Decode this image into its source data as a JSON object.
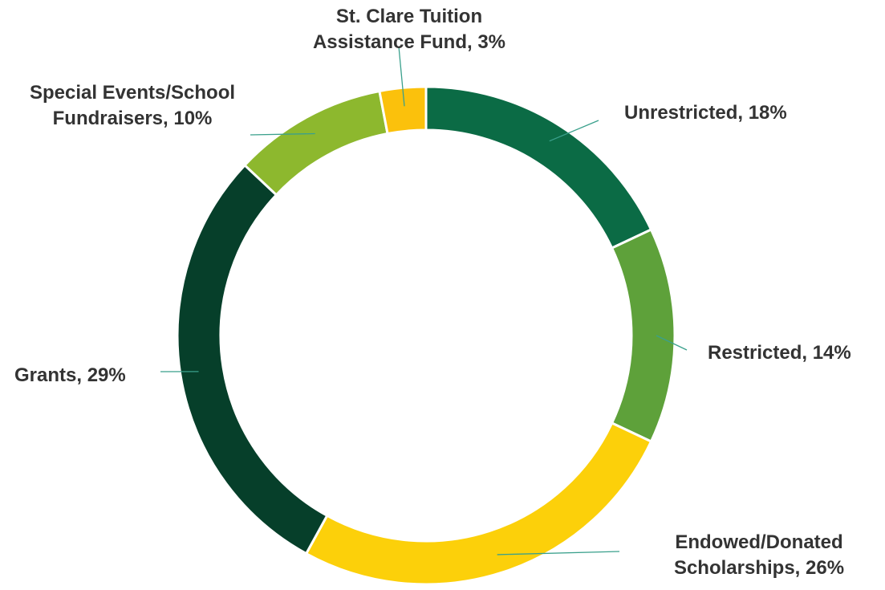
{
  "chart_data": {
    "type": "pie",
    "donut": true,
    "legend": "none",
    "start": "top",
    "direction": "clockwise",
    "slices": [
      {
        "label": "Unrestricted, 18%",
        "category": "Unrestricted",
        "value": 18,
        "color": "#0b6b45"
      },
      {
        "label": "Restricted, 14%",
        "category": "Restricted",
        "value": 14,
        "color": "#5ea13a"
      },
      {
        "label": "Endowed/Donated\nScholarships, 26%",
        "category": "Endowed/Donated Scholarships",
        "value": 26,
        "color": "#fcd00a"
      },
      {
        "label": "Grants, 29%",
        "category": "Grants",
        "value": 29,
        "color": "#063f2a"
      },
      {
        "label": "Special Events/School\nFundraisers, 10%",
        "category": "Special Events/School Fundraisers",
        "value": 10,
        "color": "#8db82e"
      },
      {
        "label": "St. Clare Tuition\nAssistance Fund, 3%",
        "category": "St. Clare Tuition Assistance Fund",
        "value": 3,
        "color": "#fbc10c"
      }
    ]
  }
}
